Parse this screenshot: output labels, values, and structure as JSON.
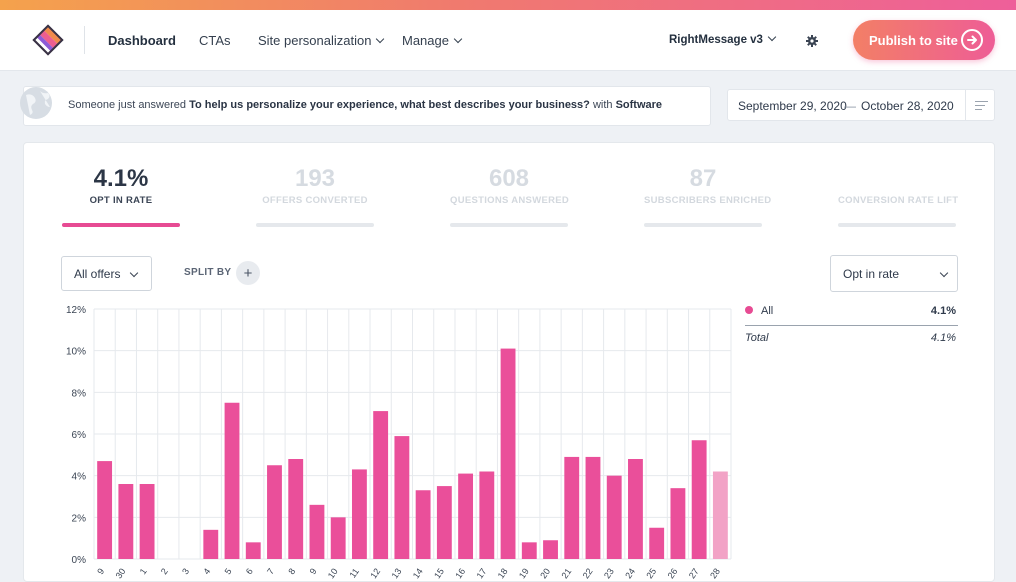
{
  "nav": {
    "links": [
      "Dashboard",
      "CTAs",
      "Site personalization",
      "Manage"
    ],
    "account": "RightMessage v3",
    "publish_label": "Publish to site"
  },
  "ticker": {
    "prefix": "Someone just answered",
    "question": "To help us personalize your experience, what best describes your business?",
    "middle": "with",
    "answer": "Software"
  },
  "date_range": {
    "start": "September 29, 2020",
    "separator": "—",
    "end": "October 28, 2020"
  },
  "stats": [
    {
      "value": "4.1%",
      "label": "OPT IN RATE",
      "active": true
    },
    {
      "value": "193",
      "label": "OFFERS CONVERTED",
      "active": false
    },
    {
      "value": "608",
      "label": "QUESTIONS ANSWERED",
      "active": false
    },
    {
      "value": "87",
      "label": "SUBSCRIBERS ENRICHED",
      "active": false
    },
    {
      "value": "",
      "label": "CONVERSION RATE LIFT",
      "active": false
    }
  ],
  "filters": {
    "offers_select": "All offers",
    "split_by_label": "SPLIT BY",
    "split_add": "+",
    "metric_select": "Opt in rate"
  },
  "legend": {
    "series_name": "All",
    "series_value": "4.1%",
    "total_label": "Total",
    "total_value": "4.1%"
  },
  "colors": {
    "accent": "#e74b93",
    "bar": "#ea4f9a",
    "bar_last": "#f2a3c6"
  },
  "chart_data": {
    "type": "bar",
    "title": "",
    "xlabel": "",
    "ylabel": "",
    "ylim": [
      0,
      12
    ],
    "yticks": [
      "0%",
      "2%",
      "4%",
      "6%",
      "8%",
      "10%",
      "12%"
    ],
    "categories": [
      "9",
      "30",
      "1",
      "2",
      "3",
      "4",
      "5",
      "6",
      "7",
      "8",
      "9",
      "10",
      "11",
      "12",
      "13",
      "14",
      "15",
      "16",
      "17",
      "18",
      "19",
      "20",
      "21",
      "22",
      "23",
      "24",
      "25",
      "26",
      "27",
      "28"
    ],
    "values": [
      4.7,
      3.6,
      3.6,
      0,
      0,
      1.4,
      7.5,
      0.8,
      4.5,
      4.8,
      2.6,
      2.0,
      4.3,
      7.1,
      5.9,
      3.3,
      3.5,
      4.1,
      4.2,
      10.1,
      0.8,
      0.9,
      4.9,
      4.9,
      4.0,
      4.8,
      1.5,
      3.4,
      5.7,
      4.2
    ]
  }
}
